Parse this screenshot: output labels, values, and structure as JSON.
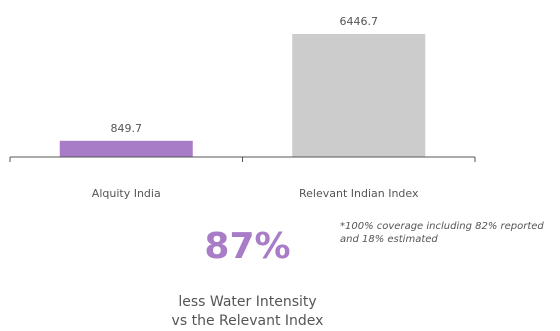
{
  "chart_data": {
    "type": "bar",
    "categories": [
      "Alquity India",
      "Relevant Indian Index"
    ],
    "values": [
      849.7,
      6446.7
    ],
    "value_labels": [
      "849.7",
      "6446.7"
    ],
    "ylim": [
      0,
      6446.7
    ],
    "grid": false,
    "legend": "none"
  },
  "colors": {
    "alquity_bar": "#a97cc7",
    "index_bar": "#cccccc",
    "accent": "#a97cc7",
    "axis": "#555555",
    "text": "#555555"
  },
  "stat": {
    "value": "87%"
  },
  "caption": {
    "line1": "less Water Intensity",
    "line2": "vs the Relevant Index"
  },
  "footnote": "*100% coverage including 82% reported and 18% estimated"
}
